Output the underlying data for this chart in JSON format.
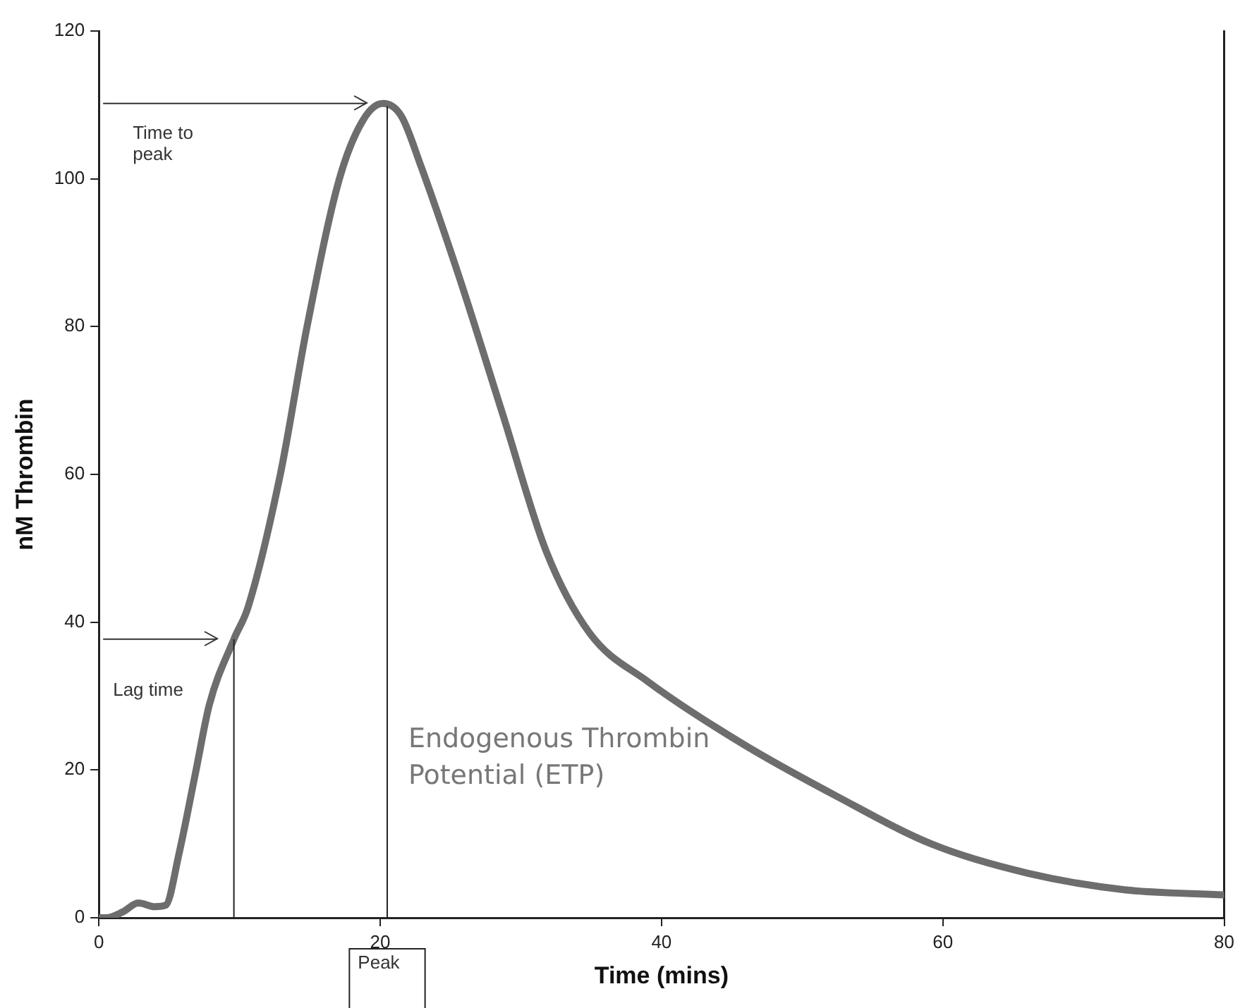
{
  "chart_data": {
    "type": "line",
    "xlabel": "Time (mins)",
    "ylabel": "nM Thrombin",
    "x": [
      0,
      0.5,
      1.7,
      2.8,
      4.0,
      4.75,
      5.7,
      6.9,
      7.85,
      9.6,
      10.6,
      12.9,
      14.8,
      17.1,
      18.8,
      20.2,
      21.5,
      22.9,
      25.6,
      28.7,
      31.8,
      34.9,
      39,
      45.8,
      52.5,
      59.3,
      66.1,
      72.9,
      80
    ],
    "series": [
      {
        "color": "#6d6d6d",
        "values": [
          0,
          0,
          0.8,
          2.0,
          1.5,
          1.7,
          8.7,
          19.9,
          28.8,
          37.7,
          42,
          60,
          80,
          100,
          108,
          110.2,
          108.5,
          101.7,
          86.8,
          68.2,
          49.6,
          38.5,
          32,
          23.5,
          16.4,
          9.9,
          6.0,
          3.8,
          3.1
        ]
      }
    ],
    "xlim": [
      0,
      80
    ],
    "ylim": [
      0,
      120
    ],
    "xticks": [
      0,
      20,
      40,
      60,
      80
    ],
    "yticks": [
      0,
      20,
      40,
      60,
      80,
      100,
      120
    ],
    "grid": false,
    "legend": false,
    "marker": "none",
    "line_style": "solid",
    "ref_lines": [
      {
        "axis": "x",
        "value": 9.6
      },
      {
        "axis": "x",
        "value": 20.5,
        "label": "Peak"
      },
      {
        "axis": "y",
        "value": 110.2,
        "label": "Time to peak"
      },
      {
        "axis": "y",
        "value": 37.7,
        "label": "Lag time"
      }
    ],
    "annotations": [
      "Endogenous Thrombin Potential (ETP)"
    ]
  }
}
